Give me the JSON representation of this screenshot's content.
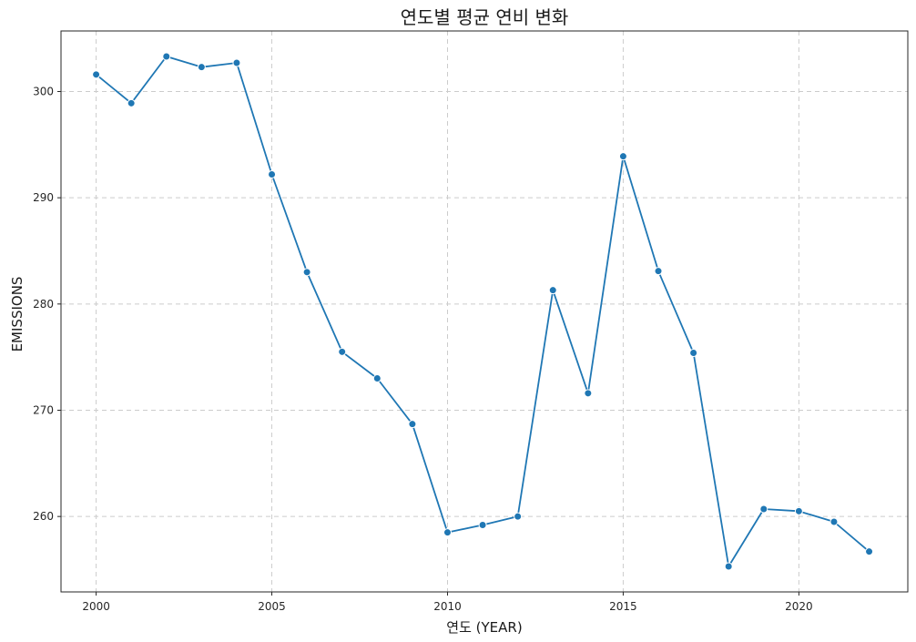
{
  "chart_data": {
    "type": "line",
    "title": "연도별 평균 연비 변화",
    "xlabel": "연도 (YEAR)",
    "ylabel": "EMISSIONS",
    "x": [
      2000,
      2001,
      2002,
      2003,
      2004,
      2005,
      2006,
      2007,
      2008,
      2009,
      2010,
      2011,
      2012,
      2013,
      2014,
      2015,
      2016,
      2017,
      2018,
      2019,
      2020,
      2021,
      2022
    ],
    "series": [
      {
        "values": [
          301.6,
          298.9,
          303.3,
          302.3,
          302.7,
          292.2,
          283.0,
          275.5,
          273.0,
          268.7,
          258.5,
          259.2,
          260.0,
          281.3,
          271.6,
          293.9,
          283.1,
          275.4,
          255.3,
          260.7,
          260.5,
          259.5,
          256.7
        ],
        "color": "#1f77b4"
      }
    ],
    "xlim": [
      1999,
      2023.1
    ],
    "ylim": [
      252.9,
      305.7
    ],
    "xticks": [
      "2000",
      "2005",
      "2010",
      "2015",
      "2020"
    ],
    "yticks": [
      "260",
      "270",
      "280",
      "290",
      "300"
    ],
    "grid": true,
    "marker": "circle"
  }
}
